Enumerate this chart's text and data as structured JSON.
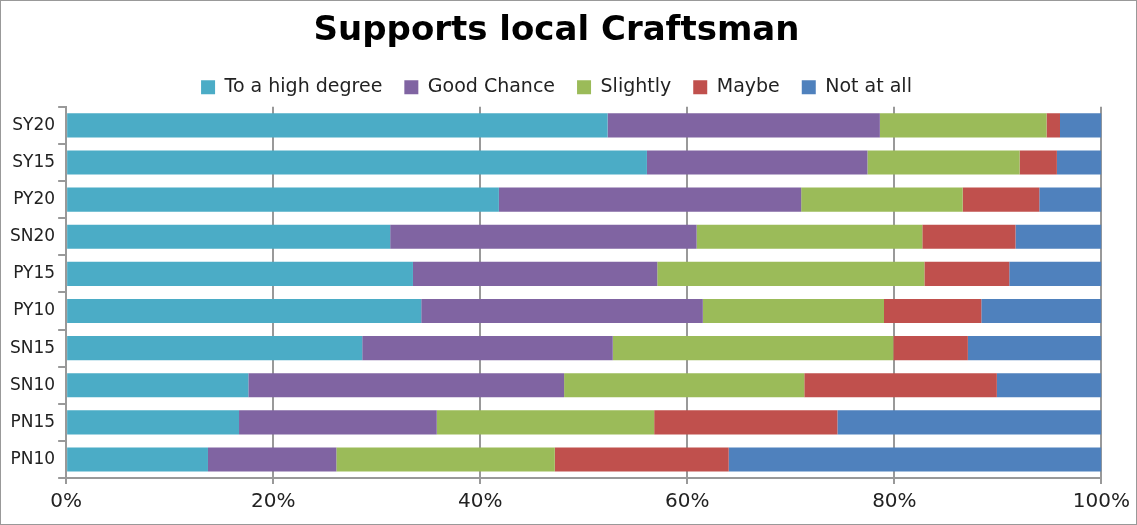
{
  "chart_data": {
    "type": "bar",
    "orientation": "horizontal",
    "stacked": true,
    "title": "Supports local Craftsman",
    "categories": [
      "SY20",
      "SY15",
      "PY20",
      "SN20",
      "PY15",
      "PY10",
      "SN15",
      "SN10",
      "PN15",
      "PN10"
    ],
    "series": [
      {
        "name": "To a high degree",
        "color": "#4bacc6",
        "values": [
          52.3,
          56.1,
          41.8,
          31.3,
          33.5,
          34.3,
          28.6,
          17.6,
          16.7,
          13.7
        ]
      },
      {
        "name": "Good Chance",
        "color": "#8064a2",
        "values": [
          26.3,
          21.3,
          29.2,
          29.6,
          23.6,
          27.2,
          24.2,
          30.5,
          19.1,
          12.4
        ]
      },
      {
        "name": "Slightly",
        "color": "#9bbb59",
        "values": [
          16.1,
          14.7,
          15.6,
          21.8,
          25.8,
          17.5,
          27.1,
          23.2,
          21.0,
          21.1
        ]
      },
      {
        "name": "Maybe",
        "color": "#c0504d",
        "values": [
          1.3,
          3.6,
          7.4,
          9.0,
          8.2,
          9.4,
          7.2,
          18.6,
          17.7,
          16.8
        ]
      },
      {
        "name": "Not at all",
        "color": "#4f81bd",
        "values": [
          4.0,
          4.3,
          6.0,
          8.3,
          8.9,
          11.6,
          12.9,
          10.1,
          25.5,
          36.0
        ]
      }
    ],
    "xlim": [
      0,
      100
    ],
    "xticks": [
      {
        "value": 0,
        "label": "0%"
      },
      {
        "value": 20,
        "label": "20%"
      },
      {
        "value": 40,
        "label": "40%"
      },
      {
        "value": 60,
        "label": "60%"
      },
      {
        "value": 80,
        "label": "80%"
      },
      {
        "value": 100,
        "label": "100%"
      }
    ],
    "grid": "x",
    "legend": "top"
  }
}
